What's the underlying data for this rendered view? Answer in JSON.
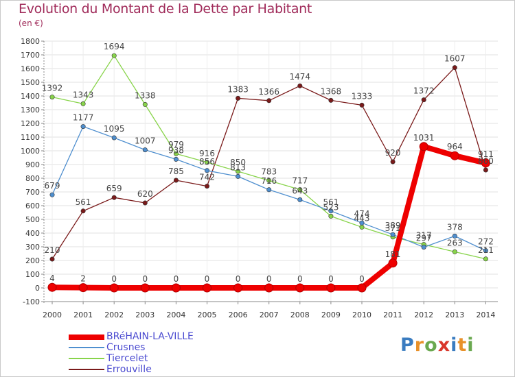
{
  "title": "Evolution du Montant de la Dette par Habitant",
  "subtitle": "(en €)",
  "logo": {
    "text": "Proxiti",
    "colors": [
      "#3a7cc0",
      "#e8912a",
      "#6aa84f",
      "#d9372b",
      "#3a7cc0",
      "#e8912a",
      "#6aa84f"
    ]
  },
  "chart_data": {
    "type": "line",
    "x": [
      "2000",
      "2001",
      "2002",
      "2003",
      "2004",
      "2005",
      "2006",
      "2007",
      "2008",
      "2009",
      "2010",
      "2011",
      "2012",
      "2013",
      "2014"
    ],
    "ylim": [
      -100,
      1800
    ],
    "yticks": [
      "-100",
      "0",
      "100",
      "200",
      "300",
      "400",
      "500",
      "600",
      "700",
      "800",
      "900",
      "1000",
      "1100",
      "1200",
      "1300",
      "1400",
      "1500",
      "1600",
      "1700",
      "1800"
    ],
    "grid": true,
    "legend_position": "bottom-left",
    "series": [
      {
        "name": "BRéHAIN-LA-VILLE",
        "color": "#ee0000",
        "values": [
          4,
          2,
          0,
          0,
          0,
          0,
          0,
          0,
          0,
          0,
          0,
          181,
          1031,
          964,
          911
        ],
        "labels": [
          "4",
          "2",
          "0",
          "0",
          "0",
          "0",
          "0",
          "0",
          "0",
          "0",
          "0",
          "181",
          "1031",
          "964",
          "911"
        ]
      },
      {
        "name": "Crusnes",
        "color": "#4f8fcf",
        "values": [
          679,
          1177,
          1095,
          1007,
          938,
          856,
          813,
          716,
          643,
          561,
          474,
          389,
          297,
          378,
          272
        ],
        "labels": [
          "679",
          "1177",
          "1095",
          "1007",
          "938",
          "856",
          "813",
          "716",
          "643",
          "561",
          "474",
          "389",
          "297",
          "378",
          "272"
        ]
      },
      {
        "name": "Tiercelet",
        "color": "#88d44a",
        "values": [
          1392,
          1343,
          1694,
          1338,
          979,
          916,
          850,
          783,
          717,
          523,
          443,
          371,
          317,
          263,
          211
        ],
        "labels": [
          "1392",
          "1343",
          "1694",
          "1338",
          "979",
          "916",
          "850",
          "783",
          "717",
          "523",
          "443",
          "371",
          "317",
          "263",
          "211"
        ]
      },
      {
        "name": "Errouville",
        "color": "#7a1a1a",
        "values": [
          210,
          561,
          659,
          620,
          785,
          742,
          1383,
          1366,
          1474,
          1368,
          1333,
          920,
          1372,
          1607,
          860
        ],
        "labels": [
          "210",
          "561",
          "659",
          "620",
          "785",
          "742",
          "1383",
          "1366",
          "1474",
          "1368",
          "1333",
          "920",
          "1372",
          "1607",
          "860"
        ]
      }
    ]
  }
}
